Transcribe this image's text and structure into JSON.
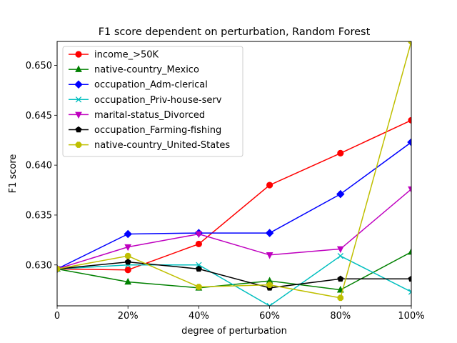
{
  "chart_data": {
    "type": "line",
    "title": "F1 score dependent on perturbation, Random Forest",
    "xlabel": "degree of perturbation",
    "ylabel": "F1 score",
    "x": [
      0,
      20,
      40,
      60,
      80,
      100
    ],
    "x_tick_labels": [
      "0",
      "20%",
      "40%",
      "60%",
      "80%",
      "100%"
    ],
    "y_ticks": [
      0.63,
      0.635,
      0.64,
      0.645,
      0.65
    ],
    "y_tick_labels": [
      "0.630",
      "0.635",
      "0.640",
      "0.645",
      "0.650"
    ],
    "xlim": [
      0,
      100
    ],
    "ylim": [
      0.6259,
      0.6524
    ],
    "grid": false,
    "legend_position": "upper-left",
    "series": [
      {
        "name": "income_>50K",
        "color": "#ff0000",
        "marker": "circle",
        "values": [
          0.6296,
          0.6295,
          0.6321,
          0.638,
          0.6412,
          0.6445
        ]
      },
      {
        "name": "native-country_Mexico",
        "color": "#008000",
        "marker": "triangle-up",
        "values": [
          0.6296,
          0.6283,
          0.6277,
          0.6284,
          0.6275,
          0.6313
        ]
      },
      {
        "name": "occupation_Adm-clerical",
        "color": "#0000ff",
        "marker": "diamond",
        "values": [
          0.6296,
          0.6331,
          0.6332,
          0.6332,
          0.6371,
          0.6423
        ]
      },
      {
        "name": "occupation_Priv-house-serv",
        "color": "#00bfbf",
        "marker": "x",
        "values": [
          0.6296,
          0.63,
          0.63,
          0.6259,
          0.6309,
          0.6273
        ]
      },
      {
        "name": "marital-status_Divorced",
        "color": "#bf00bf",
        "marker": "triangle-down",
        "values": [
          0.6296,
          0.6318,
          0.6331,
          0.631,
          0.6316,
          0.6376
        ]
      },
      {
        "name": "occupation_Farming-fishing",
        "color": "#000000",
        "marker": "pentagon",
        "values": [
          0.6296,
          0.6303,
          0.6296,
          0.6277,
          0.6286,
          0.6286
        ]
      },
      {
        "name": "native-country_United-States",
        "color": "#bfbf00",
        "marker": "octagon",
        "values": [
          0.6296,
          0.6309,
          0.6278,
          0.628,
          0.6267,
          0.6524
        ]
      }
    ]
  }
}
